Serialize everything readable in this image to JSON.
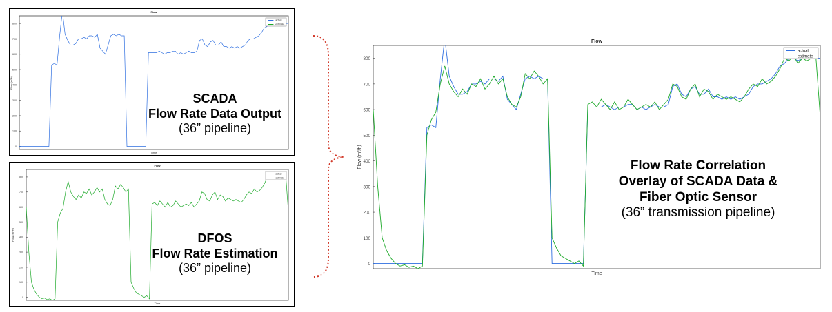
{
  "charts": {
    "scada": {
      "title": "Flow",
      "xlabel": "Time",
      "ylabel": "Flow (m³/h)",
      "legend": [
        "actual",
        "estimate"
      ],
      "caption": [
        "SCADA",
        "Flow Rate Data Output",
        "(36” pipeline)"
      ]
    },
    "dfos": {
      "title": "Flow",
      "xlabel": "Time",
      "ylabel": "Flow (m³/h)",
      "legend": [
        "actual",
        "estimate"
      ],
      "caption": [
        "DFOS",
        "Flow Rate Estimation",
        "(36” pipeline)"
      ]
    },
    "overlay": {
      "title": "Flow",
      "xlabel": "Time",
      "ylabel": "Flow (m³/h)",
      "legend": [
        "actual",
        "estimate"
      ],
      "caption": [
        "Flow Rate Correlation",
        "Overlay of SCADA Data &",
        "Fiber Optic Sensor",
        "(36” transmission pipeline)"
      ]
    }
  },
  "colors": {
    "actual": "#2f6fe0",
    "estimate": "#1faa2b",
    "axis": "#444444",
    "bracket": "#d23a2a"
  },
  "chart_data": [
    {
      "type": "line",
      "title": "Flow",
      "xlabel": "Time",
      "ylabel": "Flow (m³/h)",
      "ylim": [
        -20,
        850
      ],
      "yticks": [
        0,
        100,
        200,
        300,
        400,
        500,
        600,
        700,
        800
      ],
      "legend": "top-right",
      "series": [
        {
          "name": "actual",
          "values": [
            0,
            0,
            0,
            0,
            0,
            0,
            0,
            0,
            0,
            0,
            0,
            0,
            530,
            540,
            530,
            720,
            880,
            730,
            690,
            660,
            660,
            670,
            700,
            700,
            710,
            700,
            720,
            720,
            710,
            730,
            640,
            620,
            600,
            660,
            720,
            730,
            720,
            730,
            720,
            720,
            0,
            0,
            0,
            0,
            0,
            0,
            0,
            0,
            610,
            610,
            610,
            610,
            620,
            610,
            600,
            610,
            610,
            620,
            620,
            600,
            610,
            600,
            610,
            620,
            610,
            610,
            620,
            690,
            700,
            660,
            650,
            680,
            690,
            660,
            660,
            680,
            650,
            650,
            640,
            650,
            640,
            650,
            640,
            650,
            660,
            690,
            700,
            700,
            710,
            720,
            740,
            770,
            780,
            800,
            800,
            790,
            800,
            810,
            810,
            800,
            800
          ]
        },
        {
          "name": "estimate",
          "values": [
            600,
            300,
            100,
            50,
            20,
            0,
            -10,
            -5,
            -15,
            -10,
            -20,
            -10,
            500,
            560,
            590,
            700,
            770,
            700,
            670,
            650,
            680,
            660,
            700,
            690,
            720,
            680,
            700,
            730,
            700,
            720,
            650,
            620,
            610,
            650,
            740,
            720,
            750,
            730,
            700,
            720,
            100,
            60,
            30,
            20,
            10,
            0,
            10,
            -10,
            620,
            630,
            610,
            640,
            620,
            600,
            630,
            600,
            610,
            640,
            620,
            600,
            610,
            620,
            610,
            630,
            600,
            620,
            640,
            700,
            690,
            650,
            640,
            680,
            700,
            650,
            680,
            670,
            640,
            660,
            650,
            640,
            650,
            640,
            630,
            650,
            680,
            700,
            690,
            720,
            700,
            710,
            730,
            760,
            800,
            790,
            810,
            780,
            800,
            790,
            800,
            810,
            570
          ]
        }
      ]
    }
  ]
}
